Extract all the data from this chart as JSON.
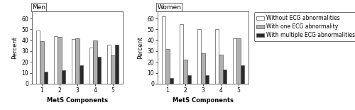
{
  "men": {
    "title": "Men",
    "categories": [
      1,
      2,
      3,
      4,
      5
    ],
    "without_ecg": [
      49,
      44,
      41,
      33,
      36
    ],
    "one_ecg": [
      39,
      43,
      42,
      40,
      26
    ],
    "multiple_ecg": [
      11,
      12,
      17,
      25,
      36
    ]
  },
  "women": {
    "title": "Women",
    "categories": [
      1,
      2,
      3,
      4,
      5
    ],
    "without_ecg": [
      62,
      55,
      50,
      50,
      42
    ],
    "one_ecg": [
      32,
      22,
      28,
      27,
      42
    ],
    "multiple_ecg": [
      5,
      8,
      8,
      13,
      17
    ]
  },
  "legend_labels": [
    "Without ECG abnormalities",
    "With one ECG abnormality",
    "With multiple ECG abnormalities"
  ],
  "colors": [
    "white",
    "#b0b0b0",
    "#2a2a2a"
  ],
  "edgecolor": "#555555",
  "xlabel": "MetS Components",
  "ylabel": "Percent",
  "ylim": [
    0,
    67
  ],
  "yticks": [
    0,
    10,
    20,
    30,
    40,
    50,
    60
  ],
  "bar_width": 0.22,
  "title_fontsize": 6.5,
  "label_fontsize": 6,
  "tick_fontsize": 5.5,
  "legend_fontsize": 5.5
}
